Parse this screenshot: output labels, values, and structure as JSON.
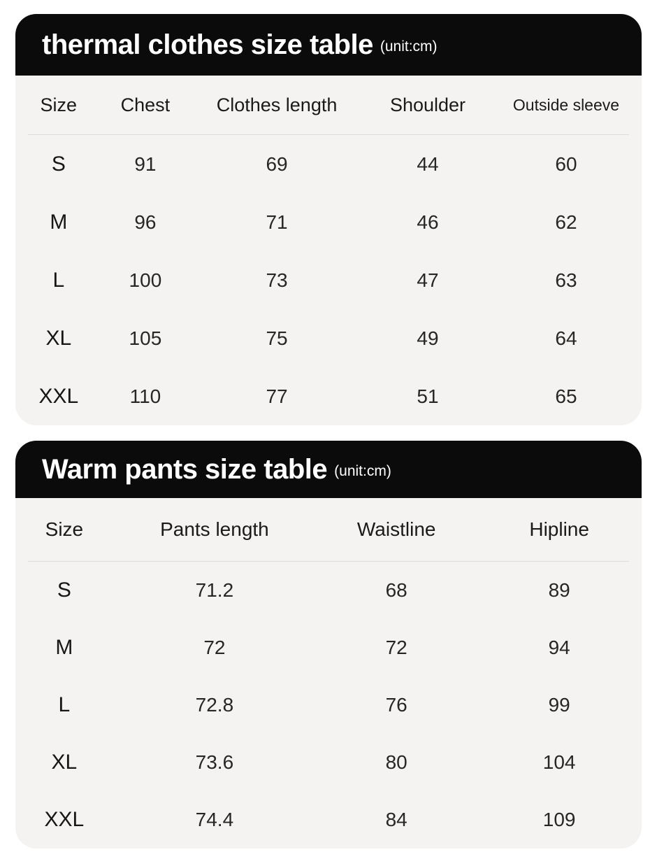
{
  "colors": {
    "header_bg": "#0b0b0b",
    "header_text": "#ffffff",
    "card_bg": "#f4f3f1",
    "page_bg": "#ffffff",
    "divider": "#dddcd9",
    "text": "#1a1a1a"
  },
  "tables": [
    {
      "title": "thermal clothes size table",
      "unit_note": "(unit:cm)",
      "columns": [
        "Size",
        "Chest",
        "Clothes length",
        "Shoulder",
        "Outside sleeve"
      ],
      "rows": [
        [
          "S",
          "91",
          "69",
          "44",
          "60"
        ],
        [
          "M",
          "96",
          "71",
          "46",
          "62"
        ],
        [
          "L",
          "100",
          "73",
          "47",
          "63"
        ],
        [
          "XL",
          "105",
          "75",
          "49",
          "64"
        ],
        [
          "XXL",
          "110",
          "77",
          "51",
          "65"
        ]
      ]
    },
    {
      "title": "Warm pants size table",
      "unit_note": "(unit:cm)",
      "columns": [
        "Size",
        "Pants length",
        "Waistline",
        "Hipline"
      ],
      "rows": [
        [
          "S",
          "71.2",
          "68",
          "89"
        ],
        [
          "M",
          "72",
          "72",
          "94"
        ],
        [
          "L",
          "72.8",
          "76",
          "99"
        ],
        [
          "XL",
          "73.6",
          "80",
          "104"
        ],
        [
          "XXL",
          "74.4",
          "84",
          "109"
        ]
      ]
    }
  ]
}
